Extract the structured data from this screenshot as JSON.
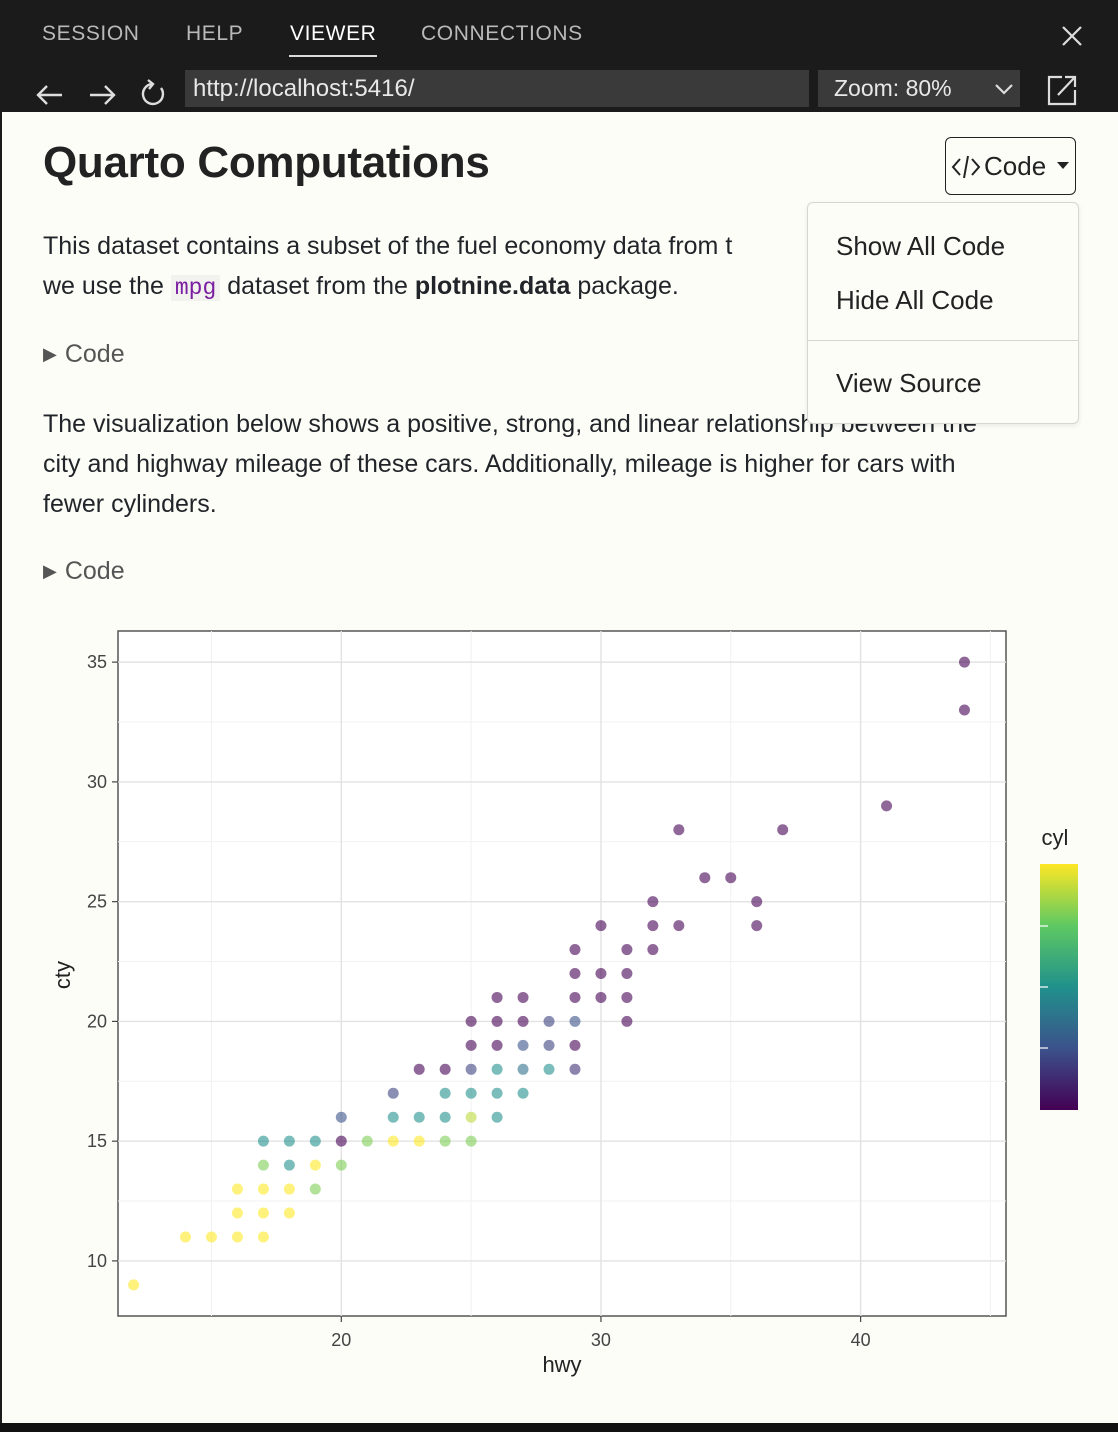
{
  "tabs": [
    {
      "label": "SESSION",
      "active": false
    },
    {
      "label": "HELP",
      "active": false
    },
    {
      "label": "VIEWER",
      "active": true
    },
    {
      "label": "CONNECTIONS",
      "active": false
    }
  ],
  "nav": {
    "url": "http://localhost:5416/",
    "zoom": "Zoom: 80%"
  },
  "doc": {
    "title": "Quarto Computations",
    "p1_a": "This dataset contains a subset of the fuel economy data from t",
    "p1_b": "we use the ",
    "p1_code": "mpg",
    "p1_c": " dataset from the ",
    "p1_bold": "plotnine.data",
    "p1_d": " package.",
    "code_toggle_1": "Code",
    "p2_l1": "The visualization below shows a positive, strong, and linear relationship between the",
    "p2_l2": "city and highway mileage of these cars. Additionally, mileage is higher for cars with",
    "p2_l3": "fewer cylinders.",
    "code_toggle_2": "Code"
  },
  "code_button": {
    "label": "Code"
  },
  "menu": {
    "items": [
      "Show All Code",
      "Hide All Code",
      "View Source"
    ]
  },
  "chart_data": {
    "type": "scatter",
    "title": "",
    "xlabel": "hwy",
    "ylabel": "cty",
    "xlim": [
      11.4,
      45.6
    ],
    "ylim": [
      7.7,
      36.3
    ],
    "xticks": [
      20,
      30,
      40
    ],
    "yticks": [
      10,
      15,
      20,
      25,
      30,
      35
    ],
    "legend_title": "cyl",
    "colorscale": "viridis",
    "clim": [
      4,
      8
    ],
    "points": [
      {
        "x": 12,
        "y": 9,
        "cyl": 8
      },
      {
        "x": 14,
        "y": 11,
        "cyl": 8
      },
      {
        "x": 15,
        "y": 11,
        "cyl": 8
      },
      {
        "x": 16,
        "y": 11,
        "cyl": 8
      },
      {
        "x": 17,
        "y": 11,
        "cyl": 8
      },
      {
        "x": 16,
        "y": 12,
        "cyl": 8
      },
      {
        "x": 17,
        "y": 12,
        "cyl": 8
      },
      {
        "x": 18,
        "y": 12,
        "cyl": 8
      },
      {
        "x": 16,
        "y": 13,
        "cyl": 8
      },
      {
        "x": 17,
        "y": 13,
        "cyl": 8
      },
      {
        "x": 18,
        "y": 13,
        "cyl": 8
      },
      {
        "x": 19,
        "y": 13,
        "cyl": 7.2
      },
      {
        "x": 17,
        "y": 14,
        "cyl": 7.2
      },
      {
        "x": 18,
        "y": 14,
        "cyl": 6
      },
      {
        "x": 19,
        "y": 14,
        "cyl": 8
      },
      {
        "x": 20,
        "y": 14,
        "cyl": 7.2
      },
      {
        "x": 17,
        "y": 15,
        "cyl": 6
      },
      {
        "x": 18,
        "y": 15,
        "cyl": 6
      },
      {
        "x": 19,
        "y": 15,
        "cyl": 6
      },
      {
        "x": 20,
        "y": 15,
        "cyl": 4
      },
      {
        "x": 21,
        "y": 15,
        "cyl": 7.2
      },
      {
        "x": 22,
        "y": 15,
        "cyl": 8
      },
      {
        "x": 23,
        "y": 15,
        "cyl": 8
      },
      {
        "x": 24,
        "y": 15,
        "cyl": 7.2
      },
      {
        "x": 25,
        "y": 15,
        "cyl": 7.2
      },
      {
        "x": 20,
        "y": 16,
        "cyl": 5
      },
      {
        "x": 22,
        "y": 16,
        "cyl": 6
      },
      {
        "x": 23,
        "y": 16,
        "cyl": 6
      },
      {
        "x": 24,
        "y": 16,
        "cyl": 6
      },
      {
        "x": 25,
        "y": 16,
        "cyl": 7.6
      },
      {
        "x": 26,
        "y": 16,
        "cyl": 6
      },
      {
        "x": 22,
        "y": 17,
        "cyl": 4.8
      },
      {
        "x": 24,
        "y": 17,
        "cyl": 6
      },
      {
        "x": 25,
        "y": 17,
        "cyl": 6
      },
      {
        "x": 26,
        "y": 17,
        "cyl": 6
      },
      {
        "x": 27,
        "y": 17,
        "cyl": 6
      },
      {
        "x": 23,
        "y": 18,
        "cyl": 4
      },
      {
        "x": 24,
        "y": 18,
        "cyl": 4
      },
      {
        "x": 25,
        "y": 18,
        "cyl": 4.8
      },
      {
        "x": 26,
        "y": 18,
        "cyl": 6
      },
      {
        "x": 27,
        "y": 18,
        "cyl": 5.5
      },
      {
        "x": 28,
        "y": 18,
        "cyl": 6
      },
      {
        "x": 29,
        "y": 18,
        "cyl": 4.6
      },
      {
        "x": 25,
        "y": 19,
        "cyl": 4
      },
      {
        "x": 26,
        "y": 19,
        "cyl": 4
      },
      {
        "x": 27,
        "y": 19,
        "cyl": 5
      },
      {
        "x": 28,
        "y": 19,
        "cyl": 4.8
      },
      {
        "x": 29,
        "y": 19,
        "cyl": 4
      },
      {
        "x": 25,
        "y": 20,
        "cyl": 4
      },
      {
        "x": 26,
        "y": 20,
        "cyl": 4
      },
      {
        "x": 27,
        "y": 20,
        "cyl": 4
      },
      {
        "x": 28,
        "y": 20,
        "cyl": 4.8
      },
      {
        "x": 29,
        "y": 20,
        "cyl": 5
      },
      {
        "x": 31,
        "y": 20,
        "cyl": 4
      },
      {
        "x": 26,
        "y": 21,
        "cyl": 4
      },
      {
        "x": 27,
        "y": 21,
        "cyl": 4
      },
      {
        "x": 29,
        "y": 21,
        "cyl": 4
      },
      {
        "x": 30,
        "y": 21,
        "cyl": 4
      },
      {
        "x": 31,
        "y": 21,
        "cyl": 4
      },
      {
        "x": 29,
        "y": 22,
        "cyl": 4
      },
      {
        "x": 30,
        "y": 22,
        "cyl": 4
      },
      {
        "x": 31,
        "y": 22,
        "cyl": 4
      },
      {
        "x": 29,
        "y": 23,
        "cyl": 4
      },
      {
        "x": 31,
        "y": 23,
        "cyl": 4
      },
      {
        "x": 32,
        "y": 23,
        "cyl": 4
      },
      {
        "x": 30,
        "y": 24,
        "cyl": 4
      },
      {
        "x": 32,
        "y": 24,
        "cyl": 4
      },
      {
        "x": 33,
        "y": 24,
        "cyl": 4
      },
      {
        "x": 36,
        "y": 24,
        "cyl": 4
      },
      {
        "x": 32,
        "y": 25,
        "cyl": 4
      },
      {
        "x": 36,
        "y": 25,
        "cyl": 4
      },
      {
        "x": 34,
        "y": 26,
        "cyl": 4
      },
      {
        "x": 35,
        "y": 26,
        "cyl": 4
      },
      {
        "x": 33,
        "y": 28,
        "cyl": 4
      },
      {
        "x": 37,
        "y": 28,
        "cyl": 4
      },
      {
        "x": 41,
        "y": 29,
        "cyl": 4
      },
      {
        "x": 44,
        "y": 33,
        "cyl": 4
      },
      {
        "x": 44,
        "y": 35,
        "cyl": 4
      }
    ]
  },
  "colors": {
    "accent": "#7b1fa2",
    "page_bg": "#fdfdf8",
    "chrome_bg": "#1b1b1c"
  }
}
